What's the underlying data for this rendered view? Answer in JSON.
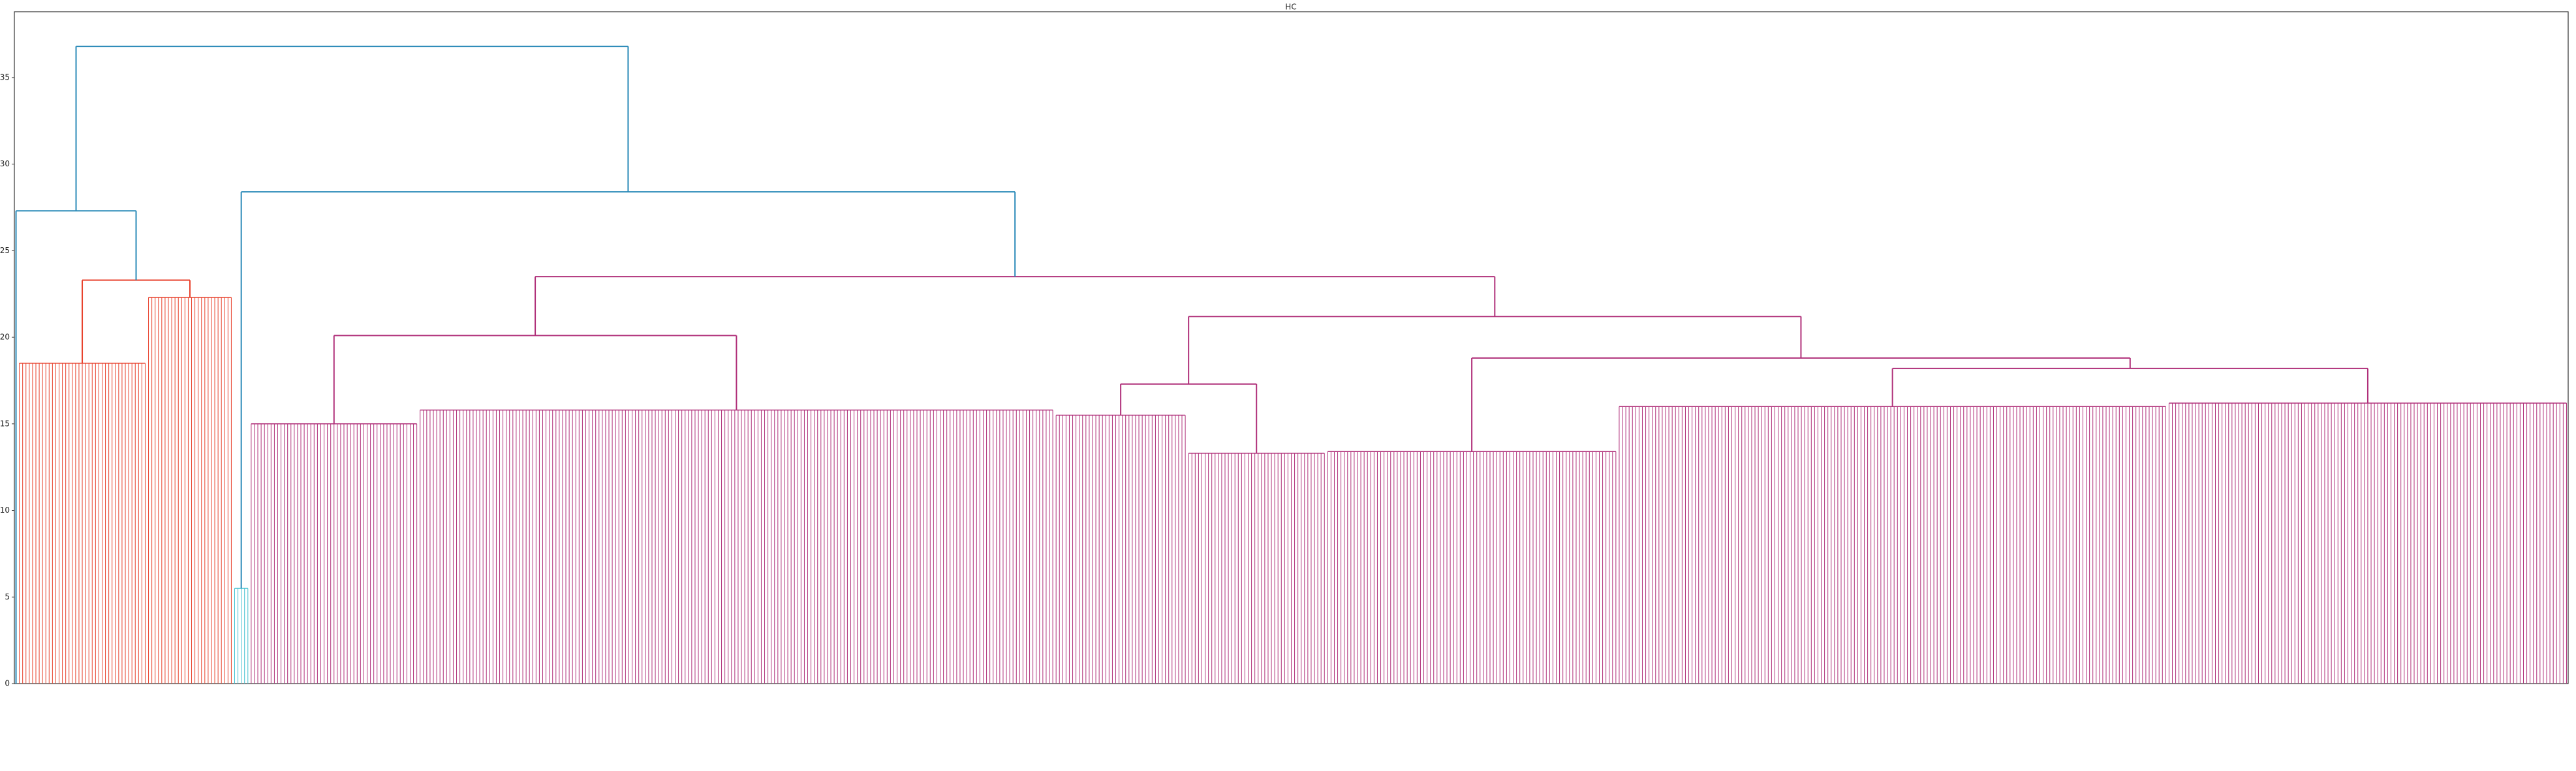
{
  "chart_data": {
    "type": "dendrogram",
    "title": "HC",
    "ylim": [
      0,
      38.8
    ],
    "yticks": [
      0,
      5,
      10,
      15,
      20,
      25,
      30,
      35
    ],
    "tree": {
      "height": 36.8,
      "color": "#2a8ab8",
      "children": [
        {
          "height": 27.3,
          "color": "#2a8ab8",
          "children": [
            {
              "height": 0,
              "leaves": 1,
              "color": "#3a9a3a"
            },
            {
              "height": 23.3,
              "color": "#e8412c",
              "children": [
                {
                  "height": 18.5,
                  "leaves": 39,
                  "color": "#e8412c"
                },
                {
                  "height": 22.3,
                  "leaves": 26,
                  "color": "#e8412c"
                }
              ]
            }
          ]
        },
        {
          "height": 28.4,
          "color": "#2a8ab8",
          "children": [
            {
              "height": 5.5,
              "leaves": 5,
              "color": "#40c0d0"
            },
            {
              "height": 23.5,
              "color": "#b0307a",
              "children": [
                {
                  "height": 20.1,
                  "color": "#b0307a",
                  "children": [
                    {
                      "height": 15,
                      "leaves": 51,
                      "color": "#b0307a"
                    },
                    {
                      "height": 15.8,
                      "leaves": 192,
                      "color": "#b0307a"
                    }
                  ]
                },
                {
                  "height": 21.2,
                  "color": "#b0307a",
                  "children": [
                    {
                      "height": 17.3,
                      "color": "#b0307a",
                      "children": [
                        {
                          "height": 15.5,
                          "leaves": 40,
                          "color": "#b0307a"
                        },
                        {
                          "height": 13.3,
                          "leaves": 42,
                          "color": "#b0307a"
                        }
                      ]
                    },
                    {
                      "height": 18.8,
                      "color": "#b0307a",
                      "children": [
                        {
                          "height": 13.4,
                          "leaves": 88,
                          "color": "#b0307a"
                        },
                        {
                          "height": 18.2,
                          "color": "#b0307a",
                          "children": [
                            {
                              "height": 16,
                              "leaves": 166,
                              "color": "#b0307a"
                            },
                            {
                              "height": 16.2,
                              "leaves": 121,
                              "color": "#b0307a"
                            }
                          ]
                        }
                      ]
                    }
                  ]
                }
              ]
            }
          ]
        }
      ]
    }
  }
}
